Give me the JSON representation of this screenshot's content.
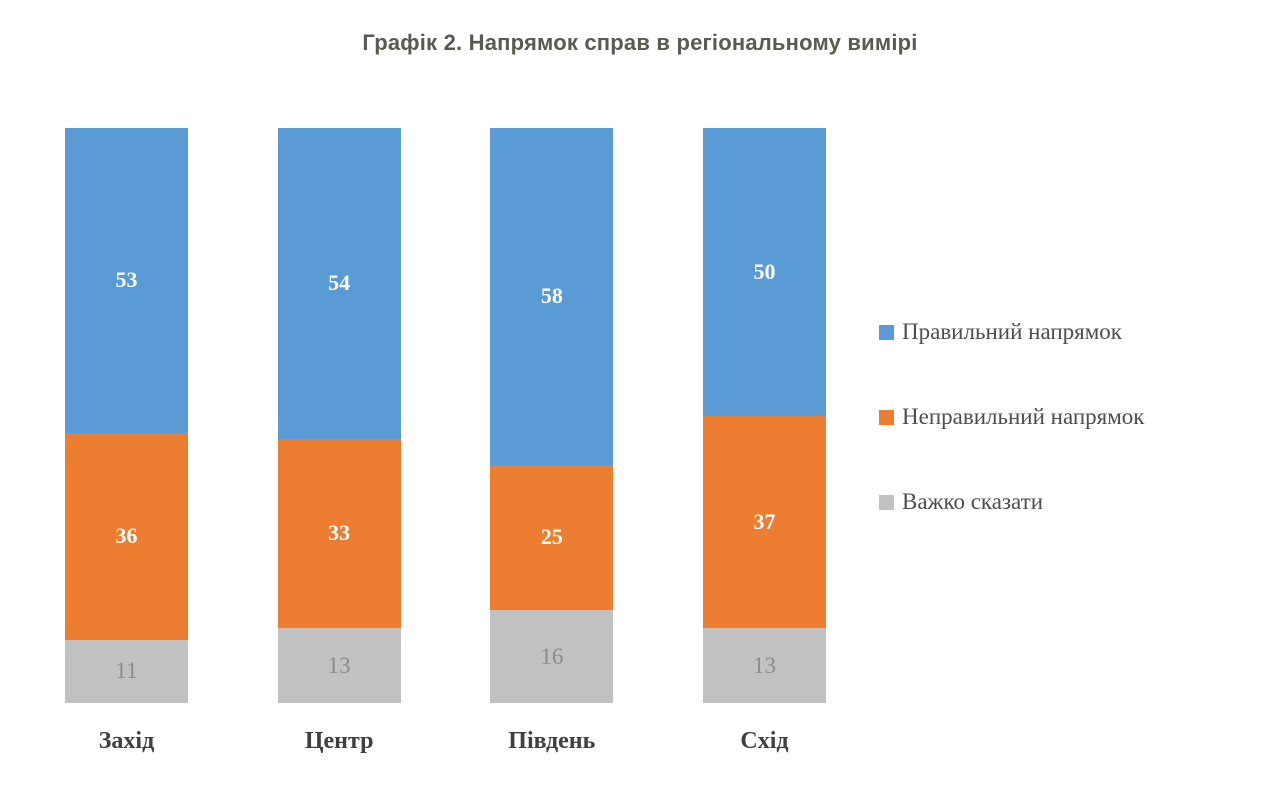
{
  "chart_data": {
    "type": "bar",
    "stacked": true,
    "percent_stacked": true,
    "title": "Графік 2. Напрямок справ в регіональному вимірі",
    "categories": [
      "Захід",
      "Центр",
      "Південь",
      "Схід"
    ],
    "series": [
      {
        "name": "Правильний напрямок",
        "color": "#5b9bd5",
        "label_color": "#ffffff",
        "values": [
          53,
          54,
          58,
          50
        ]
      },
      {
        "name": "Неправильний напрямок",
        "color": "#ed7d31",
        "label_color": "#ffffff",
        "values": [
          36,
          33,
          25,
          37
        ]
      },
      {
        "name": "Важко сказати",
        "color": "#c1c1c1",
        "label_color": "#8c8c8c",
        "values": [
          11,
          13,
          16,
          13
        ]
      }
    ],
    "xlabel": "",
    "ylabel": "",
    "ylim": [
      0,
      100
    ],
    "grid": false,
    "axes_visible": false,
    "legend_position": "right",
    "title_color": "#5a5a52",
    "category_label_color": "#3f3f3f",
    "legend_text_color": "#4d4d4d"
  }
}
